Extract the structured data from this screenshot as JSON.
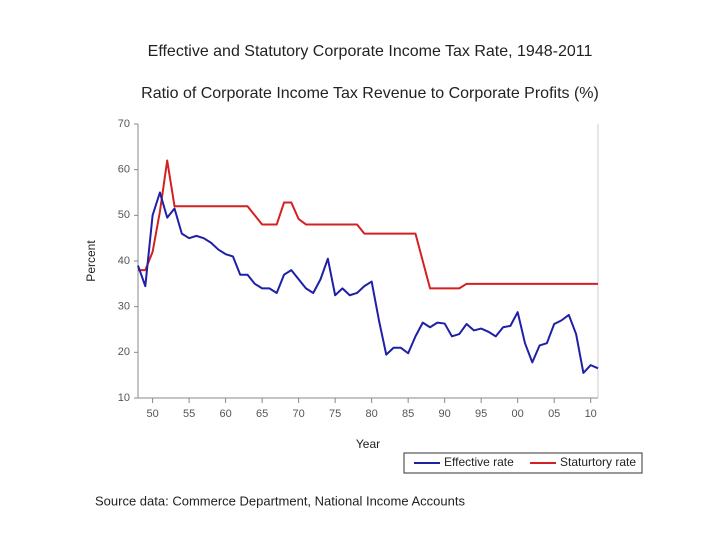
{
  "chart_data": {
    "type": "line",
    "title": "Effective and Statutory Corporate Income Tax Rate, 1948-2011",
    "subtitle": "Ratio of Corporate Income Tax Revenue to Corporate Profits (%)",
    "x_label": "Year",
    "y_label": "Percent",
    "source": "Source data: Commerce Department, National Income Accounts",
    "x": [
      1948,
      1949,
      1950,
      1951,
      1952,
      1953,
      1954,
      1955,
      1956,
      1957,
      1958,
      1959,
      1960,
      1961,
      1962,
      1963,
      1964,
      1965,
      1966,
      1967,
      1968,
      1969,
      1970,
      1971,
      1972,
      1973,
      1974,
      1975,
      1976,
      1977,
      1978,
      1979,
      1980,
      1981,
      1982,
      1983,
      1984,
      1985,
      1986,
      1987,
      1988,
      1989,
      1990,
      1991,
      1992,
      1993,
      1994,
      1995,
      1996,
      1997,
      1998,
      1999,
      2000,
      2001,
      2002,
      2003,
      2004,
      2005,
      2006,
      2007,
      2008,
      2009,
      2010,
      2011
    ],
    "series": [
      {
        "name": "Effective rate",
        "color": "#1f1fa8",
        "values": [
          39,
          34.5,
          50,
          55,
          49.5,
          51.5,
          46,
          45,
          45.5,
          45,
          44,
          42.5,
          41.5,
          41,
          37,
          37,
          35,
          34,
          34,
          33,
          37,
          38,
          36,
          34,
          33,
          36,
          40.5,
          32.5,
          34,
          32.5,
          33,
          34.5,
          35.5,
          27,
          19.5,
          21,
          21,
          19.8,
          23.5,
          26.5,
          25.5,
          26.5,
          26.3,
          23.5,
          24,
          26.2,
          24.8,
          25.2,
          24.5,
          23.5,
          25.5,
          25.8,
          28.8,
          22,
          17.8,
          21.5,
          22,
          26.2,
          27,
          28.2,
          24,
          15.5,
          17.2,
          16.5
        ]
      },
      {
        "name": "Staturtory rate",
        "color": "#d42020",
        "values": [
          38,
          38,
          42,
          50.8,
          62,
          52,
          52,
          52,
          52,
          52,
          52,
          52,
          52,
          52,
          52,
          52,
          50,
          48,
          48,
          48,
          52.8,
          52.8,
          49.2,
          48,
          48,
          48,
          48,
          48,
          48,
          48,
          48,
          46,
          46,
          46,
          46,
          46,
          46,
          46,
          46,
          40,
          34,
          34,
          34,
          34,
          34,
          35,
          35,
          35,
          35,
          35,
          35,
          35,
          35,
          35,
          35,
          35,
          35,
          35,
          35,
          35,
          35,
          35,
          35,
          35
        ]
      }
    ],
    "xlim": [
      1948,
      2011
    ],
    "xticks": [
      {
        "value": 1950,
        "label": "50"
      },
      {
        "value": 1955,
        "label": "55"
      },
      {
        "value": 1960,
        "label": "60"
      },
      {
        "value": 1965,
        "label": "65"
      },
      {
        "value": 1970,
        "label": "70"
      },
      {
        "value": 1975,
        "label": "75"
      },
      {
        "value": 1980,
        "label": "80"
      },
      {
        "value": 1985,
        "label": "85"
      },
      {
        "value": 1990,
        "label": "90"
      },
      {
        "value": 1995,
        "label": "95"
      },
      {
        "value": 2000,
        "label": "00"
      },
      {
        "value": 2005,
        "label": "05"
      },
      {
        "value": 2010,
        "label": "10"
      }
    ],
    "ylim": [
      10,
      70
    ],
    "yticks": [
      10,
      20,
      30,
      40,
      50,
      60,
      70
    ],
    "legend": "bottom-right"
  }
}
